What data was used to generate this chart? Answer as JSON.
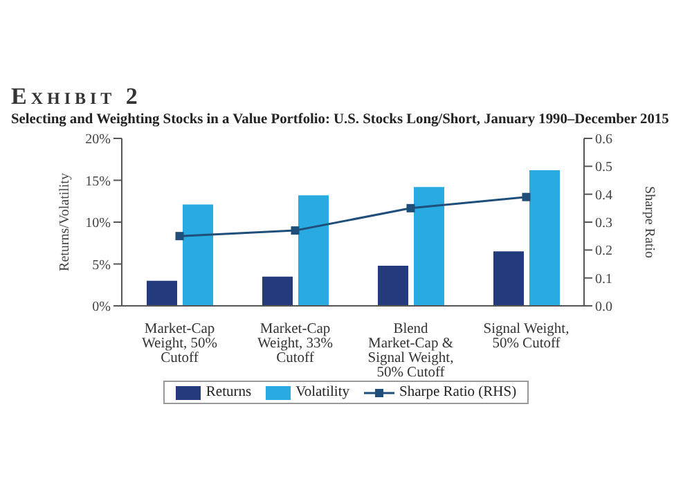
{
  "chart_data": {
    "type": "bar",
    "title": "Exhibit 2",
    "subtitle": "Selecting and Weighting Stocks in a Value Portfolio: U.S. Stocks Long/Short, January 1990–December 2015",
    "categories": [
      "Market-Cap Weight, 50% Cutoff",
      "Market-Cap Weight, 33% Cutoff",
      "Blend Market-Cap & Signal Weight, 50% Cutoff",
      "Signal Weight, 50% Cutoff"
    ],
    "series": [
      {
        "name": "Returns",
        "color": "#233a7c",
        "values": [
          3.0,
          3.5,
          4.8,
          6.5
        ]
      },
      {
        "name": "Volatility",
        "color": "#29abe2",
        "values": [
          12.1,
          13.2,
          14.2,
          16.2
        ]
      },
      {
        "name": "Sharpe Ratio (RHS)",
        "type": "line",
        "axis": "y2",
        "color": "#1f4e7a",
        "values": [
          0.25,
          0.27,
          0.35,
          0.39
        ]
      }
    ],
    "ylabel": "Returns/Volatility",
    "y2label": "Sharpe Ratio",
    "ylim": [
      0,
      20
    ],
    "yticks": [
      {
        "value": 0,
        "label": "0%"
      },
      {
        "value": 5,
        "label": "5%"
      },
      {
        "value": 10,
        "label": "10%"
      },
      {
        "value": 15,
        "label": "15%"
      },
      {
        "value": 20,
        "label": "20%"
      }
    ],
    "y2lim": [
      0,
      0.6
    ],
    "y2ticks": [
      {
        "value": 0,
        "label": "0.0"
      },
      {
        "value": 0.1,
        "label": "0.1"
      },
      {
        "value": 0.2,
        "label": "0.2"
      },
      {
        "value": 0.3,
        "label": "0.3"
      },
      {
        "value": 0.4,
        "label": "0.4"
      },
      {
        "value": 0.5,
        "label": "0.5"
      },
      {
        "value": 0.6,
        "label": "0.6"
      }
    ],
    "marker": "square",
    "legend": "bottom"
  }
}
